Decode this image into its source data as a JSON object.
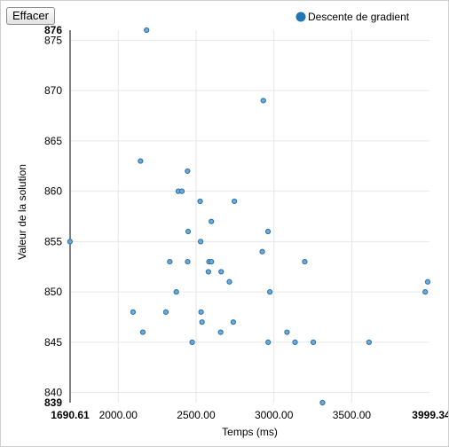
{
  "toolbar": {
    "clear_label": "Effacer"
  },
  "chart_data": {
    "type": "scatter",
    "title": "",
    "xlabel": "Temps (ms)",
    "ylabel": "Valeur de la solution",
    "xlim": [
      1690.61,
      3999.34
    ],
    "ylim": [
      839,
      876
    ],
    "x_min_label": "1690.61",
    "x_max_label": "3999.34",
    "y_min_label": "839",
    "y_max_label": "876",
    "x_ticks": [
      2000,
      2500,
      3000,
      3500
    ],
    "x_tick_labels": [
      "2000.00",
      "2500.00",
      "3000.00",
      "3500.00"
    ],
    "y_ticks": [
      840,
      845,
      850,
      855,
      860,
      865,
      870,
      875
    ],
    "y_tick_labels": [
      "840",
      "845",
      "850",
      "855",
      "860",
      "865",
      "870",
      "875"
    ],
    "grid": true,
    "legend_position": "top-right",
    "point_color": "#6aaad6",
    "point_stroke": "#2b6ea6",
    "legend_color": "#1f77b4",
    "series": [
      {
        "name": "Descente de gradient",
        "points": [
          [
            2182,
            876
          ],
          [
            2932,
            869
          ],
          [
            2143,
            863
          ],
          [
            2445,
            862
          ],
          [
            2386,
            860
          ],
          [
            2409,
            860
          ],
          [
            2526,
            859
          ],
          [
            2746,
            859
          ],
          [
            2598,
            857
          ],
          [
            2449,
            856
          ],
          [
            2962,
            856
          ],
          [
            1690,
            855
          ],
          [
            2529,
            855
          ],
          [
            2925,
            854
          ],
          [
            2331,
            853
          ],
          [
            2446,
            853
          ],
          [
            2583,
            853
          ],
          [
            2598,
            853
          ],
          [
            3198,
            853
          ],
          [
            2579,
            852
          ],
          [
            2661,
            852
          ],
          [
            2714,
            851
          ],
          [
            3988,
            851
          ],
          [
            2373,
            850
          ],
          [
            2974,
            850
          ],
          [
            3972,
            850
          ],
          [
            2095,
            848
          ],
          [
            2306,
            848
          ],
          [
            2532,
            848
          ],
          [
            2538,
            847
          ],
          [
            2739,
            847
          ],
          [
            2158,
            846
          ],
          [
            2658,
            846
          ],
          [
            3084,
            846
          ],
          [
            2475,
            845
          ],
          [
            2963,
            845
          ],
          [
            3136,
            845
          ],
          [
            3253,
            845
          ],
          [
            3611,
            845
          ],
          [
            3312,
            839
          ]
        ]
      }
    ]
  }
}
